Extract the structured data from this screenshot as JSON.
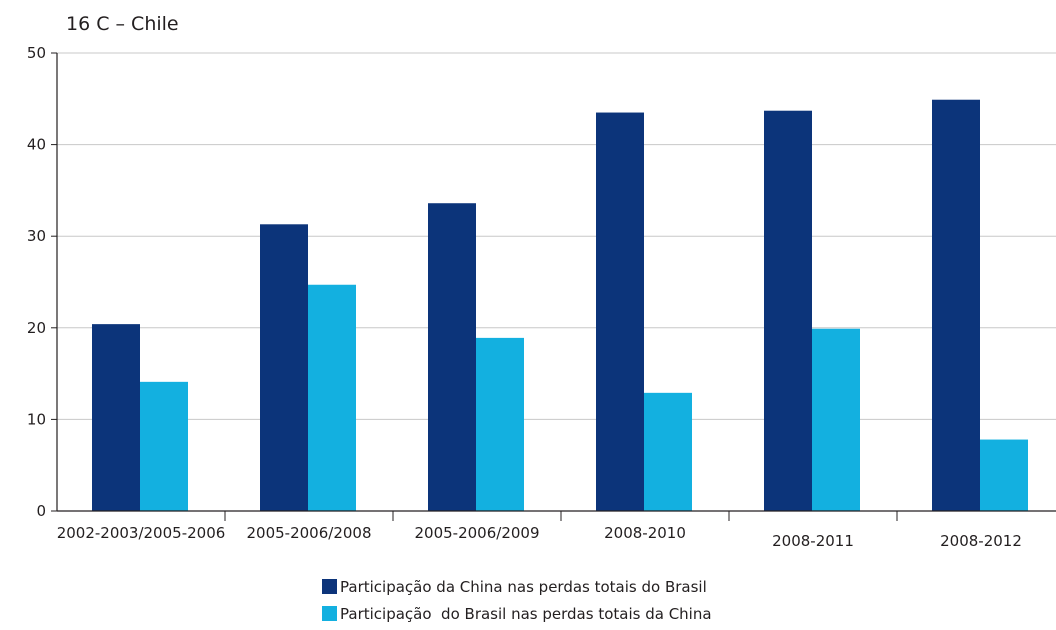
{
  "chart_data": {
    "type": "bar",
    "title": "16 C – Chile",
    "categories": [
      "2002-2003/2005-2006",
      "2005-2006/2008",
      "2005-2006/2009",
      "2008-2010",
      "2008-2011",
      "2008-2012"
    ],
    "series": [
      {
        "name": "Participação da China nas perdas totais do Brasil",
        "color": "#0c347a",
        "values": [
          20.4,
          31.3,
          33.6,
          43.5,
          43.7,
          44.9
        ]
      },
      {
        "name": "Participação  do Brasil nas perdas totais da China",
        "color": "#13b0e0",
        "values": [
          14.1,
          24.7,
          18.9,
          12.9,
          19.9,
          7.8
        ]
      }
    ],
    "ylim": [
      0,
      50
    ],
    "yticks": [
      0,
      10,
      20,
      30,
      40,
      50
    ],
    "xlabel": "",
    "ylabel": "",
    "grid": true,
    "legend_position": "bottom-center"
  }
}
